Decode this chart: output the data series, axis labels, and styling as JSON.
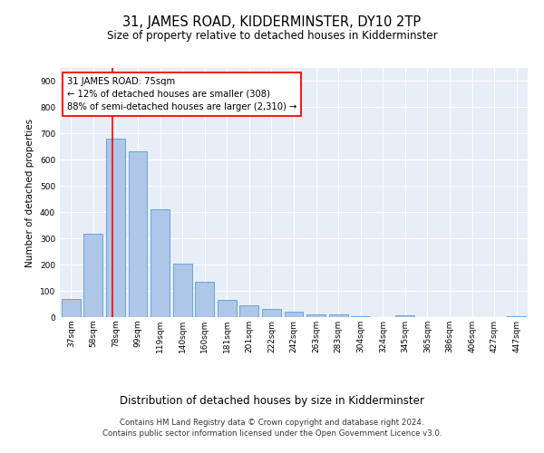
{
  "title": "31, JAMES ROAD, KIDDERMINSTER, DY10 2TP",
  "subtitle": "Size of property relative to detached houses in Kidderminster",
  "xlabel": "Distribution of detached houses by size in Kidderminster",
  "ylabel": "Number of detached properties",
  "categories": [
    "37sqm",
    "58sqm",
    "78sqm",
    "99sqm",
    "119sqm",
    "140sqm",
    "160sqm",
    "181sqm",
    "201sqm",
    "222sqm",
    "242sqm",
    "263sqm",
    "283sqm",
    "304sqm",
    "324sqm",
    "345sqm",
    "365sqm",
    "386sqm",
    "406sqm",
    "427sqm",
    "447sqm"
  ],
  "values": [
    70,
    318,
    680,
    632,
    412,
    205,
    135,
    67,
    46,
    30,
    20,
    12,
    10,
    2,
    0,
    6,
    0,
    0,
    0,
    0,
    5
  ],
  "bar_color": "#aec6e8",
  "bar_edge_color": "#5b9bd5",
  "annotation_box_text": "31 JAMES ROAD: 75sqm\n← 12% of detached houses are smaller (308)\n88% of semi-detached houses are larger (2,310) →",
  "vline_pos": 1.85,
  "ylim": [
    0,
    950
  ],
  "yticks": [
    0,
    100,
    200,
    300,
    400,
    500,
    600,
    700,
    800,
    900
  ],
  "background_color": "#e8eef7",
  "footer_text": "Contains HM Land Registry data © Crown copyright and database right 2024.\nContains public sector information licensed under the Open Government Licence v3.0.",
  "title_fontsize": 10.5,
  "subtitle_fontsize": 8.5,
  "xlabel_fontsize": 8.5,
  "ylabel_fontsize": 7.5,
  "tick_fontsize": 6.5,
  "annotation_fontsize": 7.2,
  "footer_fontsize": 6.2
}
